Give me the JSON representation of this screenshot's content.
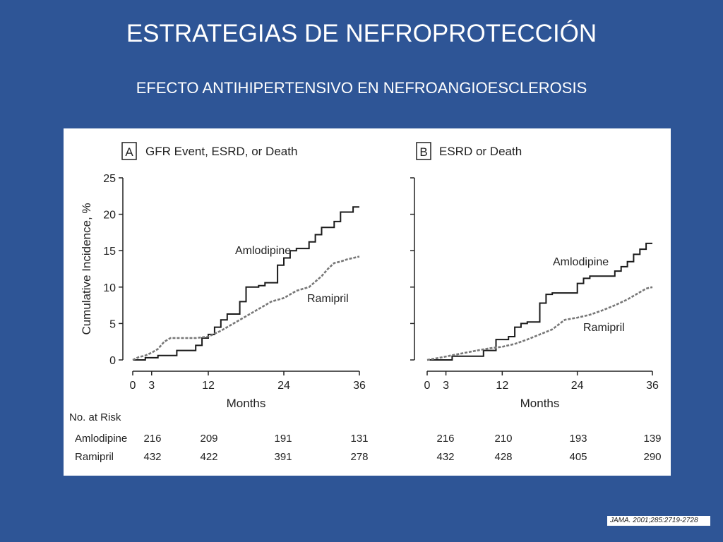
{
  "slide": {
    "title": "ESTRATEGIAS DE NEFROPROTECCIÓN",
    "subtitle": "EFECTO ANTIHIPERTENSIVO EN NEFROANGIOESCLEROSIS",
    "citation": "JAMA. 2001;285:2719-2728"
  },
  "colors": {
    "background": "#2e5596",
    "figure": "#ffffff",
    "amlodipine": "#1a1a1a",
    "ramipril": "#777777"
  },
  "risk_table": {
    "heading": "No. at Risk",
    "rows": [
      {
        "label": "Amlodipine",
        "a": [
          "216",
          "209",
          "191",
          "131"
        ],
        "b": [
          "216",
          "210",
          "193",
          "139"
        ]
      },
      {
        "label": "Ramipril",
        "a": [
          "432",
          "422",
          "391",
          "278"
        ],
        "b": [
          "432",
          "428",
          "405",
          "290"
        ]
      }
    ]
  },
  "chart_data": [
    {
      "type": "line",
      "panel_letter": "A",
      "title": "GFR Event, ESRD, or Death",
      "xlabel": "Months",
      "ylabel": "Cumulative Incidence, %",
      "xlim": [
        0,
        36
      ],
      "ylim": [
        0,
        25
      ],
      "xticks": [
        0,
        3,
        12,
        24,
        36
      ],
      "yticks": [
        0,
        5,
        10,
        15,
        20,
        25
      ],
      "series": [
        {
          "name": "Amlodipine",
          "style": "solid",
          "x": [
            0,
            2,
            2,
            4,
            4,
            7,
            7,
            10,
            10,
            11,
            11,
            12,
            12,
            13,
            13,
            14,
            14,
            15,
            15,
            17,
            17,
            18,
            18,
            20,
            20,
            21,
            21,
            23,
            23,
            24,
            24,
            25,
            25,
            26,
            26,
            28,
            28,
            29,
            29,
            30,
            30,
            32,
            32,
            33,
            33,
            35,
            35,
            36
          ],
          "y": [
            0,
            0,
            0.3,
            0.3,
            0.6,
            0.6,
            1.3,
            1.3,
            2,
            2,
            3,
            3,
            3.5,
            3.5,
            4.5,
            4.5,
            5.5,
            5.5,
            6.3,
            6.3,
            8,
            8,
            10,
            10,
            10.2,
            10.2,
            10.6,
            10.6,
            13,
            13,
            14,
            14,
            15,
            15,
            15.3,
            15.3,
            16.2,
            16.2,
            17.2,
            17.2,
            18.2,
            18.2,
            19,
            19,
            20.3,
            20.3,
            21,
            21
          ]
        },
        {
          "name": "Ramipril",
          "style": "dashed",
          "x": [
            0,
            1,
            2,
            3,
            4,
            5,
            6,
            8,
            10,
            12,
            14,
            16,
            18,
            20,
            22,
            24,
            26,
            28,
            30,
            31,
            32,
            33,
            34,
            36
          ],
          "y": [
            0,
            0.4,
            0.6,
            1,
            1.5,
            2.5,
            3,
            3,
            3,
            3.2,
            4,
            5,
            6,
            7,
            8,
            8.5,
            9.5,
            10,
            11.5,
            12.5,
            13.3,
            13.5,
            13.8,
            14.2
          ]
        }
      ]
    },
    {
      "type": "line",
      "panel_letter": "B",
      "title": "ESRD or Death",
      "xlabel": "Months",
      "ylabel": "",
      "xlim": [
        0,
        36
      ],
      "ylim": [
        0,
        25
      ],
      "xticks": [
        0,
        3,
        12,
        24,
        36
      ],
      "yticks": [
        0,
        5,
        10,
        15,
        20,
        25
      ],
      "series": [
        {
          "name": "Amlodipine",
          "style": "solid",
          "x": [
            0,
            4,
            4,
            9,
            9,
            11,
            11,
            13,
            13,
            14,
            14,
            15,
            15,
            16,
            16,
            18,
            18,
            19,
            19,
            20,
            20,
            24,
            24,
            25,
            25,
            26,
            26,
            30,
            30,
            31,
            31,
            32,
            32,
            33,
            33,
            34,
            34,
            35,
            35,
            36
          ],
          "y": [
            0,
            0,
            0.5,
            0.5,
            1.3,
            1.3,
            2.8,
            2.8,
            3.2,
            3.2,
            4.5,
            4.5,
            5,
            5,
            5.2,
            5.2,
            7.8,
            7.8,
            9,
            9,
            9.2,
            9.2,
            10.5,
            10.5,
            11.2,
            11.2,
            11.5,
            11.5,
            12.2,
            12.2,
            12.8,
            12.8,
            13.5,
            13.5,
            14.5,
            14.5,
            15.2,
            15.2,
            16,
            16
          ]
        },
        {
          "name": "Ramipril",
          "style": "dashed",
          "x": [
            0,
            2,
            5,
            8,
            10,
            12,
            14,
            16,
            18,
            20,
            22,
            24,
            26,
            28,
            30,
            32,
            34,
            35,
            36
          ],
          "y": [
            0,
            0.3,
            0.8,
            1.3,
            1.6,
            1.8,
            2.2,
            2.8,
            3.5,
            4.2,
            5.5,
            5.8,
            6.2,
            6.8,
            7.5,
            8.3,
            9.3,
            9.8,
            10
          ]
        }
      ]
    }
  ]
}
